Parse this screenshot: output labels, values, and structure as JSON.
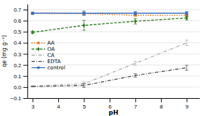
{
  "chart_data": {
    "type": "line",
    "xlabel": "pH",
    "ylabel": "qe (mg g⁻¹)",
    "x": [
      3,
      5,
      7,
      9
    ],
    "series": [
      {
        "name": "AA",
        "color": "#f07820",
        "line_style": "dotted",
        "marker": "square",
        "values": [
          0.667,
          0.665,
          0.65,
          0.648
        ],
        "errors": [
          0.005,
          0.01,
          0.01,
          0.012
        ]
      },
      {
        "name": "OA",
        "color": "#2e7d20",
        "line_style": "dashed",
        "marker": "diamond",
        "values": [
          0.495,
          0.558,
          0.595,
          0.625
        ],
        "errors": [
          0.008,
          0.045,
          0.025,
          0.018
        ]
      },
      {
        "name": "CA",
        "color": "#b0b0b0",
        "line_style": "dashdot",
        "values": [
          0.01,
          0.03,
          0.215,
          0.4
        ],
        "errors": [
          0.003,
          0.018,
          0.018,
          0.025
        ]
      },
      {
        "name": "EDTA",
        "color": "#555555",
        "line_style": "dashdot",
        "values": [
          0.005,
          0.015,
          0.105,
          0.175
        ],
        "errors": [
          0.002,
          0.018,
          0.015,
          0.022
        ]
      },
      {
        "name": "control",
        "color": "#3a6fbf",
        "line_style": "solid",
        "marker": "square",
        "values": [
          0.668,
          0.668,
          0.668,
          0.668
        ],
        "errors": [
          0.01,
          0.02,
          0.015,
          0.015
        ]
      }
    ],
    "xlim": [
      2.8,
      9.5
    ],
    "xticks": [
      3,
      4,
      5,
      6,
      7,
      8,
      9
    ],
    "ylim": [
      -0.1,
      0.75
    ],
    "yticks": [
      {
        "value": -0.1,
        "label": "−0.1"
      },
      {
        "value": 0,
        "label": "0.0"
      },
      0.1,
      0.2,
      0.3,
      0.4,
      0.5,
      0.6,
      0.7
    ],
    "grid": "y",
    "legend": "left"
  }
}
